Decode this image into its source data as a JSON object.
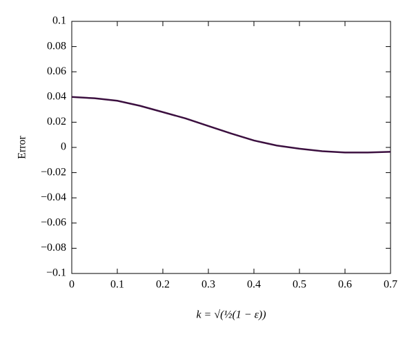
{
  "chart_data": {
    "type": "line",
    "x_label": "k = √(½(1 − ε))",
    "y_label": "Error",
    "x": [
      0,
      0.05,
      0.1,
      0.15,
      0.2,
      0.25,
      0.3,
      0.35,
      0.4,
      0.45,
      0.5,
      0.55,
      0.6,
      0.65,
      0.7
    ],
    "series": [
      {
        "color": "#3b0f3f",
        "values": [
          0.04,
          0.039,
          0.037,
          0.033,
          0.028,
          0.023,
          0.017,
          0.011,
          0.0055,
          0.0015,
          -0.001,
          -0.003,
          -0.004,
          -0.004,
          -0.0035
        ]
      }
    ],
    "xlim": [
      0,
      0.7
    ],
    "ylim": [
      -0.1,
      0.1
    ],
    "xticks": [
      0,
      0.1,
      0.2,
      0.3,
      0.4,
      0.5,
      0.6,
      0.7
    ],
    "yticks": [
      {
        "value": -0.1,
        "label": "−0.1"
      },
      {
        "value": -0.08,
        "label": "−0.08"
      },
      {
        "value": -0.06,
        "label": "−0.06"
      },
      {
        "value": -0.04,
        "label": "−0.04"
      },
      {
        "value": -0.02,
        "label": "−0.02"
      },
      0,
      0.02,
      0.04,
      0.06,
      0.08,
      0.1
    ],
    "grid": false
  }
}
